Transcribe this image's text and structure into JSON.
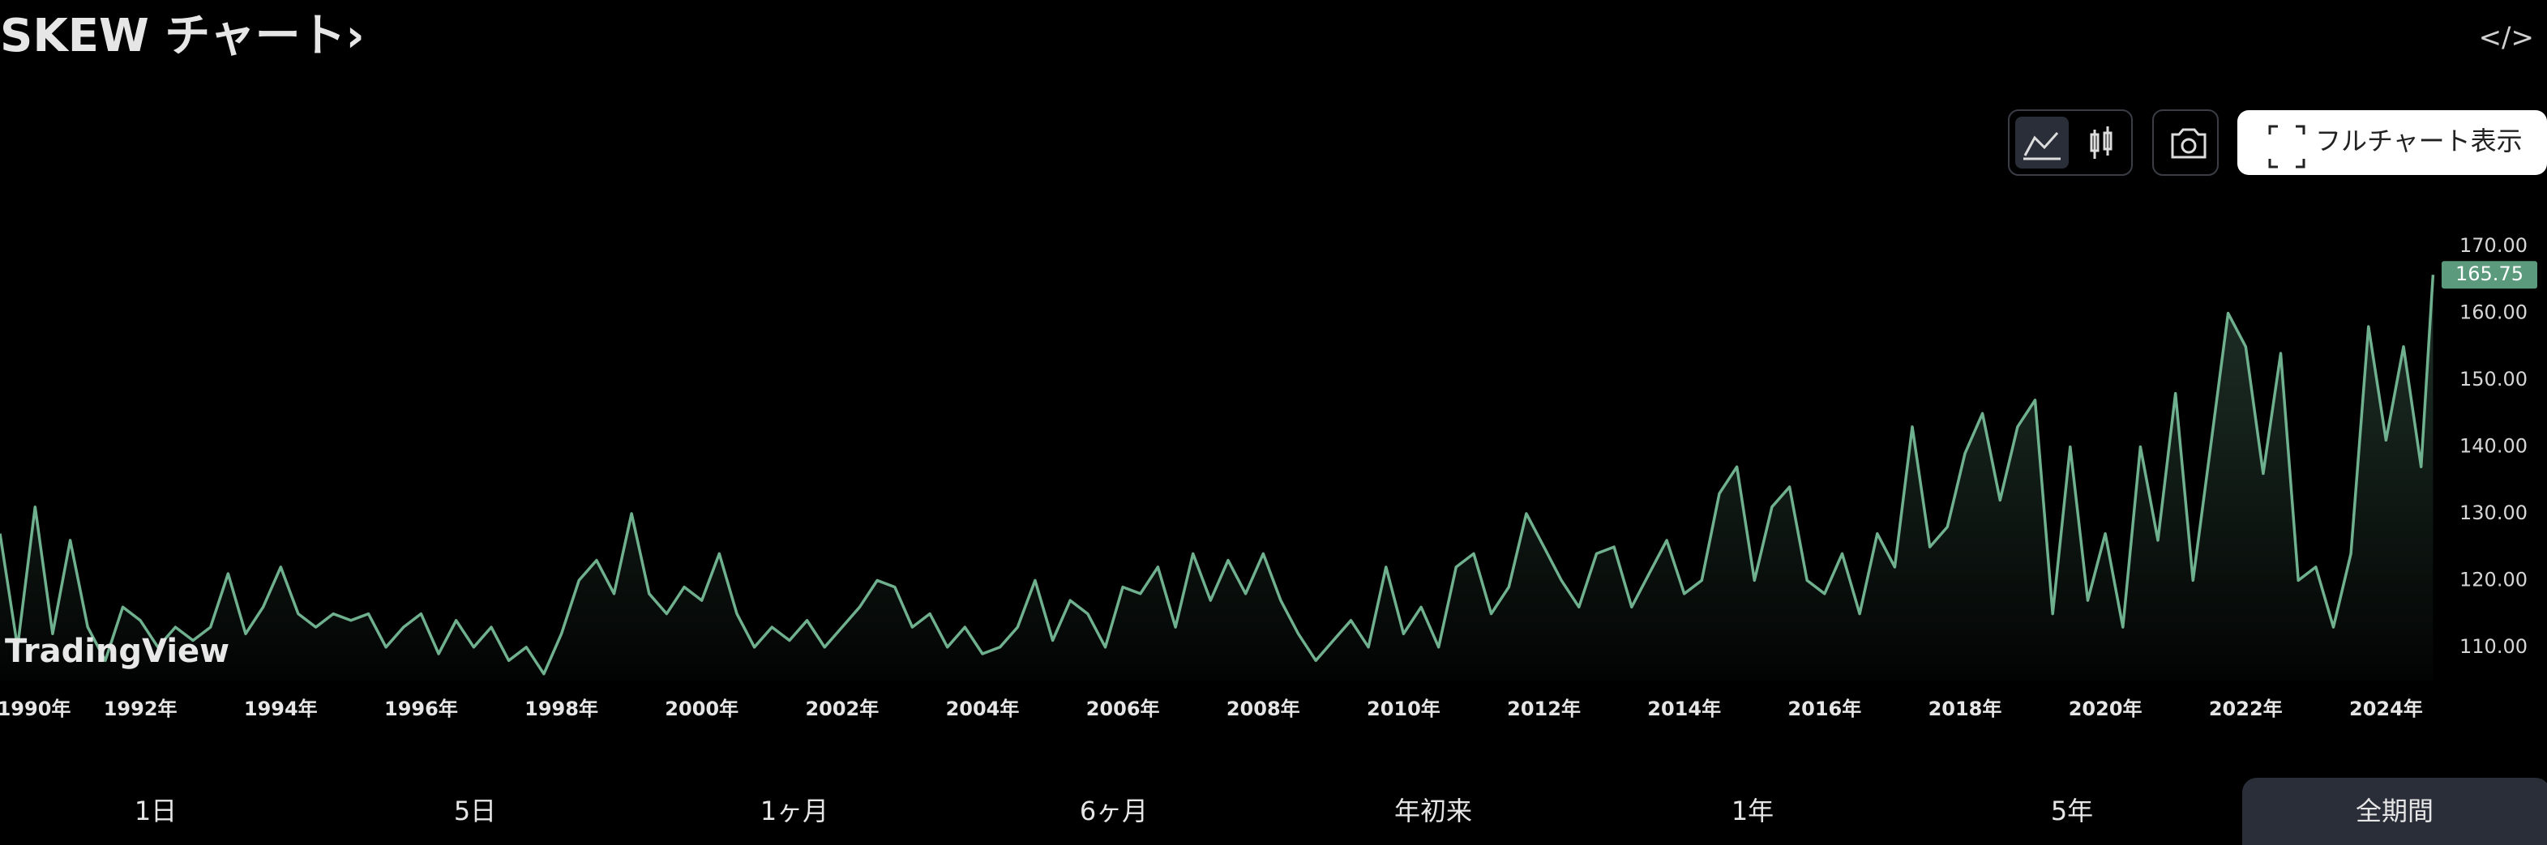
{
  "chart_data": {
    "type": "line",
    "title": "SKEW チャート›",
    "watermark": "TradingView",
    "x": [
      1990,
      1990.25,
      1990.5,
      1990.75,
      1991,
      1991.25,
      1991.5,
      1991.75,
      1992,
      1992.25,
      1992.5,
      1992.75,
      1993,
      1993.25,
      1993.5,
      1993.75,
      1994,
      1994.25,
      1994.5,
      1994.75,
      1995,
      1995.25,
      1995.5,
      1995.75,
      1996,
      1996.25,
      1996.5,
      1996.75,
      1997,
      1997.25,
      1997.5,
      1997.75,
      1998,
      1998.25,
      1998.5,
      1998.75,
      1999,
      1999.25,
      1999.5,
      1999.75,
      2000,
      2000.25,
      2000.5,
      2000.75,
      2001,
      2001.25,
      2001.5,
      2001.75,
      2002,
      2002.25,
      2002.5,
      2002.75,
      2003,
      2003.25,
      2003.5,
      2003.75,
      2004,
      2004.25,
      2004.5,
      2004.75,
      2005,
      2005.25,
      2005.5,
      2005.75,
      2006,
      2006.25,
      2006.5,
      2006.75,
      2007,
      2007.25,
      2007.5,
      2007.75,
      2008,
      2008.25,
      2008.5,
      2008.75,
      2009,
      2009.25,
      2009.5,
      2009.75,
      2010,
      2010.25,
      2010.5,
      2010.75,
      2011,
      2011.25,
      2011.5,
      2011.75,
      2012,
      2012.25,
      2012.5,
      2012.75,
      2013,
      2013.25,
      2013.5,
      2013.75,
      2014,
      2014.25,
      2014.5,
      2014.75,
      2015,
      2015.25,
      2015.5,
      2015.75,
      2016,
      2016.25,
      2016.5,
      2016.75,
      2017,
      2017.25,
      2017.5,
      2017.75,
      2018,
      2018.25,
      2018.5,
      2018.75,
      2019,
      2019.25,
      2019.5,
      2019.75,
      2020,
      2020.25,
      2020.5,
      2020.75,
      2021,
      2021.25,
      2021.5,
      2021.75,
      2022,
      2022.25,
      2022.5,
      2022.75,
      2023,
      2023.25,
      2023.5,
      2023.75,
      2024,
      2024.25,
      2024.5,
      2024.67
    ],
    "series": [
      {
        "name": "SKEW",
        "color": "#6fb08f",
        "values": [
          127,
          110,
          131,
          112,
          126,
          113,
          108,
          116,
          114,
          110,
          113,
          111,
          113,
          121,
          112,
          116,
          122,
          115,
          113,
          115,
          114,
          115,
          110,
          113,
          115,
          109,
          114,
          110,
          113,
          108,
          110,
          106,
          112,
          120,
          123,
          118,
          130,
          118,
          115,
          119,
          117,
          124,
          115,
          110,
          113,
          111,
          114,
          110,
          113,
          116,
          120,
          119,
          113,
          115,
          110,
          113,
          109,
          110,
          113,
          120,
          111,
          117,
          115,
          110,
          119,
          118,
          122,
          113,
          124,
          117,
          123,
          118,
          124,
          117,
          112,
          108,
          111,
          114,
          110,
          122,
          112,
          116,
          110,
          122,
          124,
          115,
          119,
          130,
          125,
          120,
          116,
          124,
          125,
          116,
          121,
          126,
          118,
          120,
          133,
          137,
          120,
          131,
          134,
          120,
          118,
          124,
          115,
          127,
          122,
          143,
          125,
          128,
          139,
          145,
          132,
          143,
          147,
          115,
          140,
          117,
          127,
          113,
          140,
          126,
          148,
          120,
          140,
          160,
          155,
          136,
          154,
          120,
          122,
          113,
          124,
          158,
          141,
          155,
          137,
          165.75
        ]
      }
    ],
    "xlim": [
      1990,
      2024.7
    ],
    "xticks": [
      {
        "value": 1990,
        "label": "1990年"
      },
      {
        "value": 1992,
        "label": "1992年"
      },
      {
        "value": 1994,
        "label": "1994年"
      },
      {
        "value": 1996,
        "label": "1996年"
      },
      {
        "value": 1998,
        "label": "1998年"
      },
      {
        "value": 2000,
        "label": "2000年"
      },
      {
        "value": 2002,
        "label": "2002年"
      },
      {
        "value": 2004,
        "label": "2004年"
      },
      {
        "value": 2006,
        "label": "2006年"
      },
      {
        "value": 2008,
        "label": "2008年"
      },
      {
        "value": 2010,
        "label": "2010年"
      },
      {
        "value": 2012,
        "label": "2012年"
      },
      {
        "value": 2014,
        "label": "2014年"
      },
      {
        "value": 2016,
        "label": "2016年"
      },
      {
        "value": 2018,
        "label": "2018年"
      },
      {
        "value": 2020,
        "label": "2020年"
      },
      {
        "value": 2022,
        "label": "2022年"
      },
      {
        "value": 2024,
        "label": "2024年"
      }
    ],
    "ylim": [
      105,
      175
    ],
    "yticks": [
      {
        "value": 110,
        "label": "110.00"
      },
      {
        "value": 120,
        "label": "120.00"
      },
      {
        "value": 130,
        "label": "130.00"
      },
      {
        "value": 140,
        "label": "140.00"
      },
      {
        "value": 150,
        "label": "150.00"
      },
      {
        "value": 160,
        "label": "160.00"
      },
      {
        "value": 170,
        "label": "170.00"
      }
    ],
    "grid": false
  },
  "ui": {
    "embed_icon": "</>",
    "full_chart": "フルチャート表示",
    "ranges": [
      "1日",
      "5日",
      "1ヶ月",
      "6ヶ月",
      "年初来",
      "1年",
      "5年",
      "全期間"
    ],
    "selected_range": 7
  }
}
